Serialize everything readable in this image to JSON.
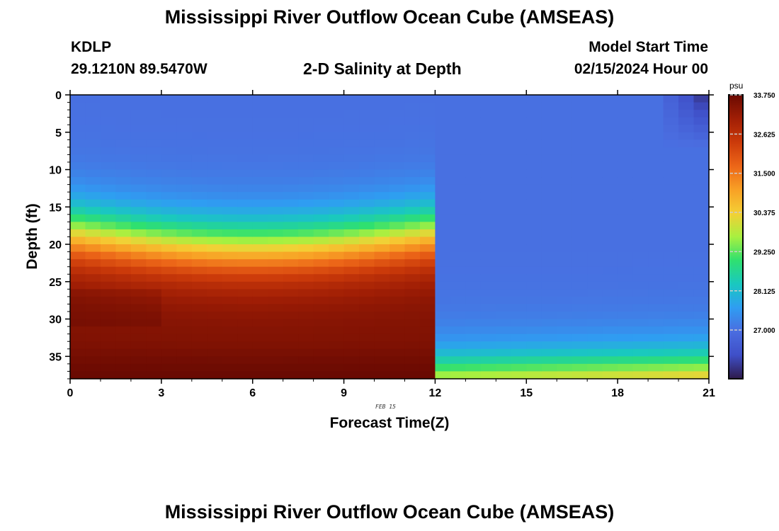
{
  "header": {
    "main_title": "Mississippi River Outflow Ocean Cube (AMSEAS)",
    "station_id": "KDLP",
    "station_coords": "29.1210N  89.5470W",
    "plot_title": "2-D Salinity at Depth",
    "model_start_label": "Model Start Time",
    "model_start_value": "02/15/2024 Hour 00",
    "date_label": "FEB 15",
    "bottom_title": "Mississippi River Outflow Ocean Cube (AMSEAS)"
  },
  "chart_data": {
    "type": "heatmap",
    "title": "2-D Salinity at Depth",
    "xlabel": "Forecast Time(Z)",
    "ylabel": "Depth (ft)",
    "xlim": [
      0,
      21
    ],
    "ylim": [
      0,
      38
    ],
    "y_inverted": true,
    "x_ticks": [
      0,
      3,
      6,
      9,
      12,
      15,
      18,
      21
    ],
    "x_tick_labels": [
      "0",
      "3",
      "6",
      "9",
      "12",
      "15",
      "18",
      "21"
    ],
    "y_ticks": [
      0,
      5,
      10,
      15,
      20,
      25,
      30,
      35
    ],
    "y_tick_labels": [
      "0",
      "5",
      "10",
      "15",
      "20",
      "25",
      "30",
      "35"
    ],
    "colorbar": {
      "unit": "psu",
      "range": [
        25.6,
        33.75
      ],
      "tick_values": [
        33.75,
        32.625,
        31.5,
        30.375,
        29.25,
        28.125,
        27.0
      ],
      "tick_labels": [
        "33.750",
        "32.625",
        "31.500",
        "30.375",
        "29.250",
        "28.125",
        "27.000"
      ],
      "colormap_stops": [
        "#2e1a4a",
        "#3f4fc8",
        "#4a6de0",
        "#2f9df2",
        "#19c8c0",
        "#2fe070",
        "#a8f040",
        "#f4cf35",
        "#f8a025",
        "#ec6518",
        "#cb3a0a",
        "#a01e05",
        "#6a0a02"
      ]
    },
    "description_profile": {
      "surface_salinity": 27.0,
      "bottom_salinity": 33.5,
      "halocline_depth_start": 18.5,
      "halocline_depth_min": 20.5,
      "halocline_depth_end": 19.5
    }
  }
}
